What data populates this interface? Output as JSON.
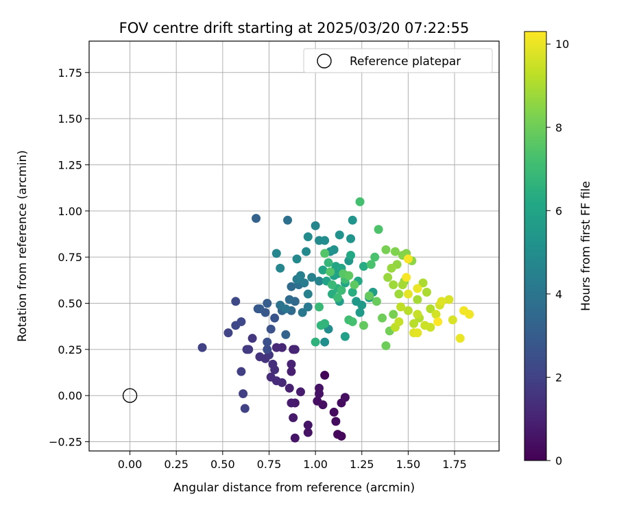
{
  "chart_data": {
    "type": "scatter",
    "title": "FOV centre drift starting at 2025/03/20 07:22:55",
    "xlabel": "Angular distance from reference (arcmin)",
    "ylabel": "Rotation from reference (arcmin)",
    "xlim": [
      -0.22,
      1.99
    ],
    "ylim": [
      -0.3,
      1.92
    ],
    "xticks": [
      0.0,
      0.25,
      0.5,
      0.75,
      1.0,
      1.25,
      1.5,
      1.75
    ],
    "xtick_labels": [
      "0.00",
      "0.25",
      "0.50",
      "0.75",
      "1.00",
      "1.25",
      "1.50",
      "1.75"
    ],
    "yticks": [
      -0.25,
      0.0,
      0.25,
      0.5,
      0.75,
      1.0,
      1.25,
      1.5,
      1.75
    ],
    "ytick_labels": [
      "−0.25",
      "0.00",
      "0.25",
      "0.50",
      "0.75",
      "1.00",
      "1.25",
      "1.50",
      "1.75"
    ],
    "grid": true,
    "legend": {
      "position": "top-right",
      "entries": [
        "Reference platepar"
      ]
    },
    "reference_point": {
      "x": 0.0,
      "y": 0.0,
      "label": "Reference platepar"
    },
    "colorbar": {
      "label": "Hours from first FF file",
      "min": 0,
      "max": 10.3,
      "ticks": [
        0,
        2,
        4,
        6,
        8,
        10
      ],
      "tick_labels": [
        "0",
        "2",
        "4",
        "6",
        "8",
        "10"
      ],
      "colormap": "viridis"
    },
    "points": [
      {
        "x": 1.05,
        "y": 0.11,
        "h": 0.1
      },
      {
        "x": 1.12,
        "y": -0.21,
        "h": 0.2
      },
      {
        "x": 1.14,
        "y": -0.22,
        "h": 0.2
      },
      {
        "x": 1.11,
        "y": -0.14,
        "h": 0.3
      },
      {
        "x": 1.1,
        "y": -0.09,
        "h": 0.3
      },
      {
        "x": 1.14,
        "y": -0.04,
        "h": 0.3
      },
      {
        "x": 1.16,
        "y": -0.01,
        "h": 0.4
      },
      {
        "x": 1.04,
        "y": -0.05,
        "h": 0.4
      },
      {
        "x": 1.01,
        "y": -0.03,
        "h": 0.4
      },
      {
        "x": 1.02,
        "y": 0.01,
        "h": 0.5
      },
      {
        "x": 1.02,
        "y": 0.04,
        "h": 0.5
      },
      {
        "x": 0.96,
        "y": -0.2,
        "h": 0.5
      },
      {
        "x": 0.96,
        "y": -0.16,
        "h": 0.6
      },
      {
        "x": 0.89,
        "y": -0.23,
        "h": 0.6
      },
      {
        "x": 0.88,
        "y": -0.12,
        "h": 0.7
      },
      {
        "x": 0.89,
        "y": -0.04,
        "h": 0.7
      },
      {
        "x": 0.87,
        "y": -0.04,
        "h": 0.8
      },
      {
        "x": 0.92,
        "y": 0.02,
        "h": 0.8
      },
      {
        "x": 0.86,
        "y": 0.04,
        "h": 0.9
      },
      {
        "x": 0.87,
        "y": 0.13,
        "h": 0.9
      },
      {
        "x": 0.87,
        "y": 0.17,
        "h": 1.0
      },
      {
        "x": 0.88,
        "y": 0.25,
        "h": 1.0
      },
      {
        "x": 0.89,
        "y": 0.25,
        "h": 1.1
      },
      {
        "x": 0.82,
        "y": 0.26,
        "h": 1.1
      },
      {
        "x": 0.79,
        "y": 0.26,
        "h": 1.2
      },
      {
        "x": 0.82,
        "y": 0.07,
        "h": 1.2
      },
      {
        "x": 0.79,
        "y": 0.08,
        "h": 1.3
      },
      {
        "x": 0.76,
        "y": 0.1,
        "h": 1.3
      },
      {
        "x": 0.78,
        "y": 0.14,
        "h": 1.4
      },
      {
        "x": 0.77,
        "y": 0.17,
        "h": 1.4
      },
      {
        "x": 0.73,
        "y": 0.2,
        "h": 1.5
      },
      {
        "x": 0.7,
        "y": 0.21,
        "h": 1.5
      },
      {
        "x": 0.75,
        "y": 0.22,
        "h": 1.6
      },
      {
        "x": 0.66,
        "y": 0.31,
        "h": 1.6
      },
      {
        "x": 0.64,
        "y": 0.25,
        "h": 1.7
      },
      {
        "x": 0.63,
        "y": 0.25,
        "h": 1.8
      },
      {
        "x": 0.6,
        "y": 0.13,
        "h": 1.9
      },
      {
        "x": 0.61,
        "y": 0.01,
        "h": 1.9
      },
      {
        "x": 0.62,
        "y": -0.07,
        "h": 2.0
      },
      {
        "x": 0.39,
        "y": 0.26,
        "h": 2.0
      },
      {
        "x": 0.53,
        "y": 0.34,
        "h": 2.1
      },
      {
        "x": 0.57,
        "y": 0.38,
        "h": 2.2
      },
      {
        "x": 0.6,
        "y": 0.4,
        "h": 2.2
      },
      {
        "x": 0.57,
        "y": 0.51,
        "h": 2.3
      },
      {
        "x": 0.74,
        "y": 0.25,
        "h": 2.4
      },
      {
        "x": 0.74,
        "y": 0.29,
        "h": 2.5
      },
      {
        "x": 0.76,
        "y": 0.36,
        "h": 2.6
      },
      {
        "x": 0.78,
        "y": 0.42,
        "h": 2.7
      },
      {
        "x": 0.73,
        "y": 0.45,
        "h": 2.8
      },
      {
        "x": 0.69,
        "y": 0.47,
        "h": 2.8
      },
      {
        "x": 0.7,
        "y": 0.47,
        "h": 2.9
      },
      {
        "x": 0.74,
        "y": 0.5,
        "h": 3.0
      },
      {
        "x": 0.68,
        "y": 0.96,
        "h": 3.2
      },
      {
        "x": 0.84,
        "y": 0.33,
        "h": 3.3
      },
      {
        "x": 0.82,
        "y": 0.46,
        "h": 3.4
      },
      {
        "x": 0.87,
        "y": 0.46,
        "h": 3.5
      },
      {
        "x": 0.89,
        "y": 0.51,
        "h": 3.5
      },
      {
        "x": 0.86,
        "y": 0.52,
        "h": 3.6
      },
      {
        "x": 0.87,
        "y": 0.59,
        "h": 3.6
      },
      {
        "x": 0.91,
        "y": 0.6,
        "h": 3.7
      },
      {
        "x": 0.85,
        "y": 0.95,
        "h": 3.8
      },
      {
        "x": 0.81,
        "y": 0.49,
        "h": 3.9
      },
      {
        "x": 0.84,
        "y": 0.47,
        "h": 4.0
      },
      {
        "x": 0.93,
        "y": 0.45,
        "h": 4.1
      },
      {
        "x": 0.96,
        "y": 0.48,
        "h": 4.2
      },
      {
        "x": 0.94,
        "y": 0.61,
        "h": 4.3
      },
      {
        "x": 0.9,
        "y": 0.63,
        "h": 4.3
      },
      {
        "x": 0.92,
        "y": 0.65,
        "h": 4.4
      },
      {
        "x": 0.96,
        "y": 0.55,
        "h": 4.5
      },
      {
        "x": 0.98,
        "y": 0.64,
        "h": 4.5
      },
      {
        "x": 1.02,
        "y": 0.62,
        "h": 4.6
      },
      {
        "x": 1.0,
        "y": 0.92,
        "h": 4.6
      },
      {
        "x": 0.79,
        "y": 0.77,
        "h": 4.7
      },
      {
        "x": 0.81,
        "y": 0.69,
        "h": 4.7
      },
      {
        "x": 0.9,
        "y": 0.74,
        "h": 4.8
      },
      {
        "x": 0.95,
        "y": 0.78,
        "h": 4.8
      },
      {
        "x": 0.96,
        "y": 0.86,
        "h": 4.9
      },
      {
        "x": 1.02,
        "y": 0.84,
        "h": 4.9
      },
      {
        "x": 1.05,
        "y": 0.84,
        "h": 5.0
      },
      {
        "x": 1.07,
        "y": 0.36,
        "h": 5.0
      },
      {
        "x": 1.05,
        "y": 0.29,
        "h": 5.1
      },
      {
        "x": 1.08,
        "y": 0.78,
        "h": 5.1
      },
      {
        "x": 1.1,
        "y": 0.79,
        "h": 5.2
      },
      {
        "x": 1.13,
        "y": 0.87,
        "h": 5.2
      },
      {
        "x": 1.19,
        "y": 0.85,
        "h": 5.3
      },
      {
        "x": 1.2,
        "y": 0.95,
        "h": 5.3
      },
      {
        "x": 1.18,
        "y": 0.73,
        "h": 5.4
      },
      {
        "x": 1.22,
        "y": 0.51,
        "h": 5.5
      },
      {
        "x": 1.25,
        "y": 0.49,
        "h": 5.5
      },
      {
        "x": 1.24,
        "y": 0.45,
        "h": 5.6
      },
      {
        "x": 1.29,
        "y": 0.53,
        "h": 5.6
      },
      {
        "x": 1.31,
        "y": 0.56,
        "h": 5.7
      },
      {
        "x": 1.13,
        "y": 0.51,
        "h": 5.7
      },
      {
        "x": 1.16,
        "y": 0.32,
        "h": 5.8
      },
      {
        "x": 1.12,
        "y": 0.66,
        "h": 5.8
      },
      {
        "x": 1.1,
        "y": 0.65,
        "h": 5.9
      },
      {
        "x": 1.06,
        "y": 0.62,
        "h": 5.9
      },
      {
        "x": 1.04,
        "y": 0.68,
        "h": 6.0
      },
      {
        "x": 1.11,
        "y": 0.7,
        "h": 6.0
      },
      {
        "x": 1.14,
        "y": 0.69,
        "h": 6.1
      },
      {
        "x": 1.16,
        "y": 0.61,
        "h": 6.1
      },
      {
        "x": 1.19,
        "y": 0.76,
        "h": 6.2
      },
      {
        "x": 1.23,
        "y": 0.62,
        "h": 6.2
      },
      {
        "x": 1.26,
        "y": 0.7,
        "h": 6.3
      },
      {
        "x": 1.2,
        "y": 0.56,
        "h": 6.4
      },
      {
        "x": 1.09,
        "y": 0.55,
        "h": 6.4
      },
      {
        "x": 1.12,
        "y": 0.58,
        "h": 6.5
      },
      {
        "x": 1.0,
        "y": 0.29,
        "h": 6.6
      },
      {
        "x": 1.03,
        "y": 0.38,
        "h": 6.7
      },
      {
        "x": 1.05,
        "y": 0.39,
        "h": 6.7
      },
      {
        "x": 1.07,
        "y": 0.72,
        "h": 6.8
      },
      {
        "x": 1.02,
        "y": 0.48,
        "h": 6.9
      },
      {
        "x": 1.09,
        "y": 0.6,
        "h": 6.9
      },
      {
        "x": 1.12,
        "y": 0.53,
        "h": 7.0
      },
      {
        "x": 1.14,
        "y": 0.57,
        "h": 7.0
      },
      {
        "x": 1.16,
        "y": 0.63,
        "h": 7.1
      },
      {
        "x": 1.18,
        "y": 0.41,
        "h": 7.1
      },
      {
        "x": 1.2,
        "y": 0.4,
        "h": 7.2
      },
      {
        "x": 1.24,
        "y": 1.05,
        "h": 7.2
      },
      {
        "x": 1.3,
        "y": 0.71,
        "h": 7.3
      },
      {
        "x": 1.32,
        "y": 0.75,
        "h": 7.3
      },
      {
        "x": 1.34,
        "y": 0.9,
        "h": 7.4
      },
      {
        "x": 1.05,
        "y": 0.77,
        "h": 7.5
      },
      {
        "x": 1.08,
        "y": 0.67,
        "h": 7.5
      },
      {
        "x": 1.15,
        "y": 0.66,
        "h": 7.6
      },
      {
        "x": 1.18,
        "y": 0.65,
        "h": 7.7
      },
      {
        "x": 1.21,
        "y": 0.6,
        "h": 7.7
      },
      {
        "x": 1.26,
        "y": 0.38,
        "h": 7.8
      },
      {
        "x": 1.29,
        "y": 0.54,
        "h": 7.8
      },
      {
        "x": 1.33,
        "y": 0.51,
        "h": 7.9
      },
      {
        "x": 1.36,
        "y": 0.42,
        "h": 8.0
      },
      {
        "x": 1.38,
        "y": 0.27,
        "h": 8.0
      },
      {
        "x": 1.4,
        "y": 0.35,
        "h": 8.1
      },
      {
        "x": 1.42,
        "y": 0.44,
        "h": 8.2
      },
      {
        "x": 1.38,
        "y": 0.79,
        "h": 8.2
      },
      {
        "x": 1.43,
        "y": 0.78,
        "h": 8.3
      },
      {
        "x": 1.47,
        "y": 0.76,
        "h": 8.4
      },
      {
        "x": 1.49,
        "y": 0.77,
        "h": 8.4
      },
      {
        "x": 1.52,
        "y": 0.73,
        "h": 8.5
      },
      {
        "x": 1.48,
        "y": 0.62,
        "h": 8.5
      },
      {
        "x": 1.44,
        "y": 0.71,
        "h": 8.6
      },
      {
        "x": 1.41,
        "y": 0.69,
        "h": 8.7
      },
      {
        "x": 1.39,
        "y": 0.64,
        "h": 8.7
      },
      {
        "x": 1.42,
        "y": 0.6,
        "h": 8.8
      },
      {
        "x": 1.45,
        "y": 0.55,
        "h": 8.8
      },
      {
        "x": 1.47,
        "y": 0.6,
        "h": 8.9
      },
      {
        "x": 1.55,
        "y": 0.52,
        "h": 8.9
      },
      {
        "x": 1.58,
        "y": 0.61,
        "h": 9.0
      },
      {
        "x": 1.6,
        "y": 0.56,
        "h": 9.0
      },
      {
        "x": 1.62,
        "y": 0.47,
        "h": 9.1
      },
      {
        "x": 1.56,
        "y": 0.42,
        "h": 9.1
      },
      {
        "x": 1.53,
        "y": 0.39,
        "h": 9.2
      },
      {
        "x": 1.5,
        "y": 0.46,
        "h": 9.2
      },
      {
        "x": 1.46,
        "y": 0.48,
        "h": 9.3
      },
      {
        "x": 1.43,
        "y": 0.37,
        "h": 9.3
      },
      {
        "x": 1.45,
        "y": 0.4,
        "h": 9.4
      },
      {
        "x": 1.55,
        "y": 0.44,
        "h": 9.4
      },
      {
        "x": 1.59,
        "y": 0.38,
        "h": 9.5
      },
      {
        "x": 1.62,
        "y": 0.37,
        "h": 9.5
      },
      {
        "x": 1.65,
        "y": 0.44,
        "h": 9.6
      },
      {
        "x": 1.67,
        "y": 0.49,
        "h": 9.6
      },
      {
        "x": 1.72,
        "y": 0.52,
        "h": 9.7
      },
      {
        "x": 1.74,
        "y": 0.41,
        "h": 9.7
      },
      {
        "x": 1.68,
        "y": 0.51,
        "h": 9.8
      },
      {
        "x": 1.53,
        "y": 0.34,
        "h": 9.8
      },
      {
        "x": 1.55,
        "y": 0.34,
        "h": 9.9
      },
      {
        "x": 1.5,
        "y": 0.55,
        "h": 9.9
      },
      {
        "x": 1.55,
        "y": 0.58,
        "h": 10.0
      },
      {
        "x": 1.78,
        "y": 0.31,
        "h": 10.0
      },
      {
        "x": 1.8,
        "y": 0.46,
        "h": 10.1
      },
      {
        "x": 1.83,
        "y": 0.44,
        "h": 10.1
      },
      {
        "x": 1.5,
        "y": 0.74,
        "h": 10.2
      },
      {
        "x": 1.49,
        "y": 0.64,
        "h": 10.2
      },
      {
        "x": 1.66,
        "y": 0.4,
        "h": 10.3
      }
    ]
  }
}
